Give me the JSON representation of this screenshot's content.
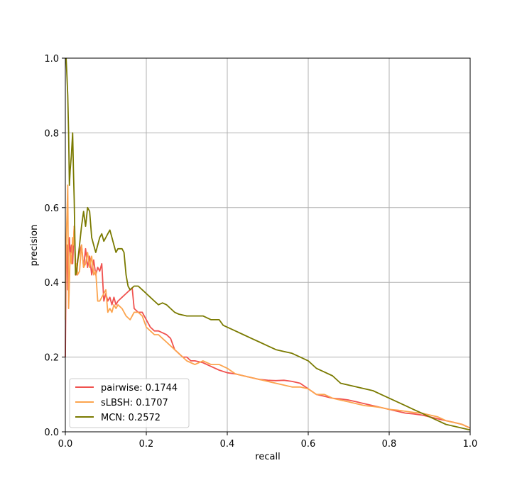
{
  "chart_data": {
    "type": "line",
    "title": "",
    "xlabel": "recall",
    "ylabel": "precision",
    "xlim": [
      0,
      1
    ],
    "ylim": [
      0,
      1
    ],
    "xticks": [
      "0.0",
      "0.2",
      "0.4",
      "0.6",
      "0.8",
      "1.0"
    ],
    "yticks": [
      "0.0",
      "0.2",
      "0.4",
      "0.6",
      "0.8",
      "1.0"
    ],
    "grid": true,
    "legend_position": "lower-left",
    "series": [
      {
        "name": "pairwise: 0.1744",
        "color": "#f0524f",
        "x": [
          0.0,
          0.002,
          0.004,
          0.006,
          0.008,
          0.01,
          0.012,
          0.015,
          0.018,
          0.02,
          0.022,
          0.025,
          0.028,
          0.03,
          0.035,
          0.04,
          0.045,
          0.05,
          0.055,
          0.06,
          0.065,
          0.07,
          0.075,
          0.08,
          0.085,
          0.09,
          0.095,
          0.1,
          0.105,
          0.11,
          0.115,
          0.12,
          0.125,
          0.13,
          0.14,
          0.15,
          0.16,
          0.165,
          0.17,
          0.18,
          0.19,
          0.2,
          0.21,
          0.22,
          0.23,
          0.24,
          0.25,
          0.26,
          0.27,
          0.28,
          0.29,
          0.3,
          0.31,
          0.32,
          0.34,
          0.36,
          0.38,
          0.4,
          0.42,
          0.44,
          0.46,
          0.48,
          0.5,
          0.52,
          0.54,
          0.56,
          0.58,
          0.6,
          0.62,
          0.64,
          0.66,
          0.68,
          0.7,
          0.72,
          0.74,
          0.76,
          0.78,
          0.8,
          0.82,
          0.84,
          0.86,
          0.88,
          0.9,
          0.92,
          0.94,
          0.96,
          0.98,
          1.0
        ],
        "y": [
          0.2,
          0.45,
          0.5,
          0.38,
          0.5,
          0.52,
          0.47,
          0.5,
          0.45,
          0.5,
          0.55,
          0.45,
          0.42,
          0.46,
          0.48,
          0.5,
          0.44,
          0.49,
          0.44,
          0.47,
          0.42,
          0.46,
          0.42,
          0.44,
          0.43,
          0.45,
          0.35,
          0.37,
          0.35,
          0.36,
          0.34,
          0.36,
          0.34,
          0.35,
          0.36,
          0.37,
          0.38,
          0.385,
          0.33,
          0.32,
          0.32,
          0.3,
          0.28,
          0.27,
          0.27,
          0.265,
          0.26,
          0.25,
          0.22,
          0.21,
          0.2,
          0.2,
          0.19,
          0.19,
          0.185,
          0.175,
          0.165,
          0.158,
          0.155,
          0.15,
          0.145,
          0.14,
          0.138,
          0.137,
          0.138,
          0.135,
          0.13,
          0.115,
          0.1,
          0.095,
          0.09,
          0.088,
          0.085,
          0.08,
          0.075,
          0.07,
          0.065,
          0.06,
          0.055,
          0.05,
          0.048,
          0.045,
          0.04,
          0.035,
          0.03,
          0.025,
          0.02,
          0.01
        ]
      },
      {
        "name": "sLBSH: 0.1707",
        "color": "#fca44e",
        "x": [
          0.0,
          0.002,
          0.004,
          0.006,
          0.008,
          0.01,
          0.012,
          0.015,
          0.018,
          0.02,
          0.022,
          0.025,
          0.028,
          0.03,
          0.035,
          0.04,
          0.045,
          0.05,
          0.055,
          0.06,
          0.065,
          0.07,
          0.075,
          0.08,
          0.085,
          0.09,
          0.095,
          0.1,
          0.105,
          0.11,
          0.115,
          0.12,
          0.125,
          0.13,
          0.14,
          0.15,
          0.16,
          0.165,
          0.17,
          0.18,
          0.19,
          0.2,
          0.21,
          0.22,
          0.23,
          0.24,
          0.25,
          0.26,
          0.27,
          0.28,
          0.29,
          0.3,
          0.31,
          0.32,
          0.34,
          0.36,
          0.38,
          0.4,
          0.42,
          0.44,
          0.46,
          0.48,
          0.5,
          0.52,
          0.54,
          0.56,
          0.58,
          0.6,
          0.62,
          0.64,
          0.66,
          0.68,
          0.7,
          0.72,
          0.74,
          0.76,
          0.78,
          0.8,
          0.82,
          0.84,
          0.86,
          0.88,
          0.9,
          0.92,
          0.94,
          0.96,
          0.98,
          1.0
        ],
        "y": [
          0.3,
          0.5,
          0.58,
          0.66,
          0.33,
          0.4,
          0.48,
          0.45,
          0.52,
          0.5,
          0.55,
          0.44,
          0.45,
          0.42,
          0.43,
          0.5,
          0.44,
          0.45,
          0.48,
          0.44,
          0.47,
          0.42,
          0.43,
          0.35,
          0.35,
          0.36,
          0.37,
          0.38,
          0.32,
          0.33,
          0.32,
          0.34,
          0.33,
          0.34,
          0.33,
          0.31,
          0.3,
          0.31,
          0.32,
          0.32,
          0.31,
          0.28,
          0.27,
          0.26,
          0.26,
          0.25,
          0.24,
          0.23,
          0.22,
          0.21,
          0.2,
          0.19,
          0.185,
          0.18,
          0.19,
          0.18,
          0.18,
          0.17,
          0.155,
          0.15,
          0.145,
          0.14,
          0.135,
          0.13,
          0.125,
          0.12,
          0.12,
          0.115,
          0.1,
          0.1,
          0.09,
          0.085,
          0.08,
          0.075,
          0.07,
          0.068,
          0.065,
          0.06,
          0.058,
          0.055,
          0.052,
          0.05,
          0.045,
          0.04,
          0.03,
          0.025,
          0.02,
          0.01
        ]
      },
      {
        "name": "MCN: 0.2572",
        "color": "#7a7a00",
        "x": [
          0.002,
          0.004,
          0.006,
          0.008,
          0.01,
          0.012,
          0.015,
          0.018,
          0.02,
          0.022,
          0.025,
          0.028,
          0.03,
          0.035,
          0.04,
          0.045,
          0.05,
          0.055,
          0.06,
          0.065,
          0.07,
          0.075,
          0.08,
          0.085,
          0.09,
          0.095,
          0.1,
          0.105,
          0.11,
          0.115,
          0.12,
          0.125,
          0.13,
          0.14,
          0.145,
          0.15,
          0.155,
          0.16,
          0.17,
          0.18,
          0.19,
          0.2,
          0.21,
          0.22,
          0.23,
          0.24,
          0.25,
          0.26,
          0.27,
          0.28,
          0.3,
          0.32,
          0.34,
          0.36,
          0.38,
          0.39,
          0.4,
          0.42,
          0.44,
          0.46,
          0.48,
          0.5,
          0.52,
          0.54,
          0.56,
          0.58,
          0.6,
          0.62,
          0.64,
          0.66,
          0.68,
          0.7,
          0.72,
          0.74,
          0.76,
          0.78,
          0.8,
          0.82,
          0.84,
          0.86,
          0.88,
          0.9,
          0.92,
          0.94,
          0.96,
          0.98,
          1.0
        ],
        "y": [
          1.0,
          0.95,
          0.9,
          0.8,
          0.66,
          0.7,
          0.74,
          0.8,
          0.7,
          0.62,
          0.42,
          0.43,
          0.45,
          0.5,
          0.55,
          0.59,
          0.55,
          0.6,
          0.59,
          0.52,
          0.5,
          0.48,
          0.5,
          0.52,
          0.53,
          0.51,
          0.52,
          0.53,
          0.54,
          0.52,
          0.5,
          0.48,
          0.49,
          0.49,
          0.48,
          0.42,
          0.39,
          0.38,
          0.39,
          0.39,
          0.38,
          0.37,
          0.36,
          0.35,
          0.34,
          0.345,
          0.34,
          0.33,
          0.32,
          0.315,
          0.31,
          0.31,
          0.31,
          0.3,
          0.3,
          0.285,
          0.28,
          0.27,
          0.26,
          0.25,
          0.24,
          0.23,
          0.22,
          0.215,
          0.21,
          0.2,
          0.19,
          0.17,
          0.16,
          0.15,
          0.13,
          0.125,
          0.12,
          0.115,
          0.11,
          0.1,
          0.09,
          0.08,
          0.07,
          0.06,
          0.05,
          0.04,
          0.03,
          0.02,
          0.015,
          0.01,
          0.005
        ]
      }
    ]
  }
}
